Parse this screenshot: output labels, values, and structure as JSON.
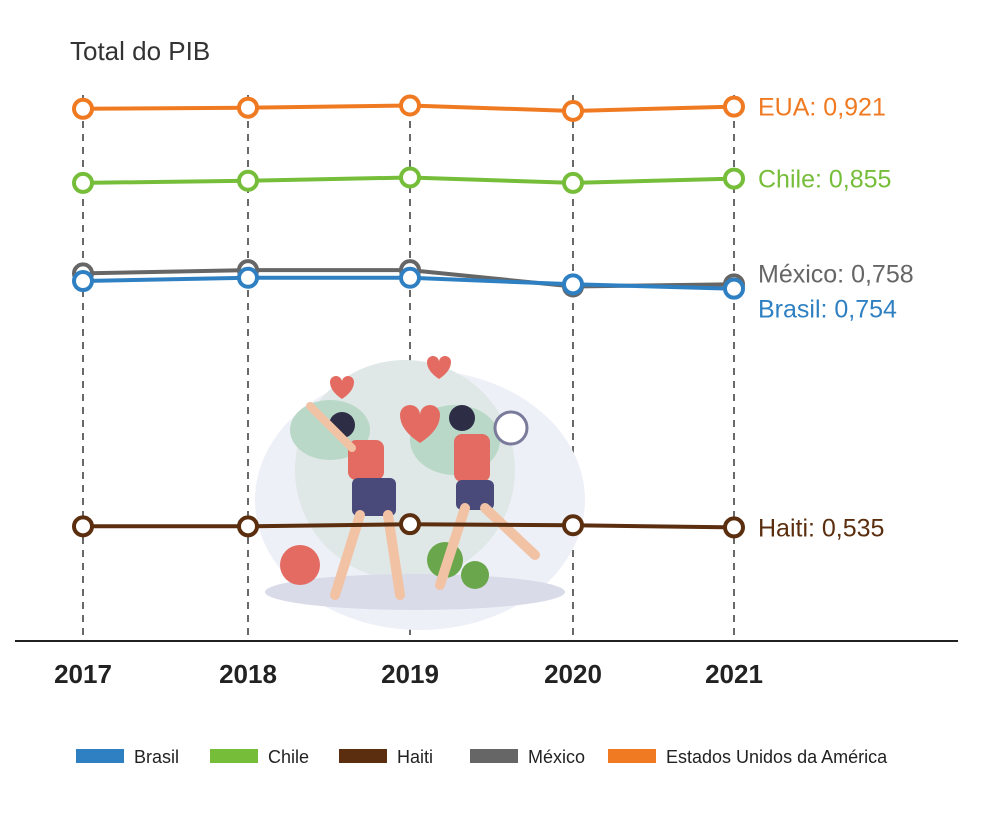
{
  "chart_data": {
    "type": "line",
    "title": "Total do PIB",
    "xlabel": "",
    "ylabel": "",
    "x": [
      "2017",
      "2018",
      "2019",
      "2020",
      "2021"
    ],
    "ylim": [
      0.44,
      0.95
    ],
    "grid": "vertical dashed lines",
    "legend": "bottom",
    "series": [
      {
        "name": "Estados Unidos da América",
        "color": "#f07a22",
        "values": [
          0.919,
          0.92,
          0.922,
          0.917,
          0.921
        ],
        "end_label": "EUA: 0,921"
      },
      {
        "name": "Chile",
        "color": "#76be39",
        "values": [
          0.851,
          0.853,
          0.856,
          0.851,
          0.855
        ],
        "end_label": "Chile: 0,855"
      },
      {
        "name": "México",
        "color": "#666666",
        "values": [
          0.768,
          0.771,
          0.771,
          0.756,
          0.758
        ],
        "end_label": "México: 0,758"
      },
      {
        "name": "Brasil",
        "color": "#2f80c3",
        "values": [
          0.761,
          0.764,
          0.764,
          0.758,
          0.754
        ],
        "end_label": "Brasil: 0,754"
      },
      {
        "name": "Haiti",
        "color": "#5a2e0e",
        "values": [
          0.536,
          0.536,
          0.538,
          0.537,
          0.535
        ],
        "end_label": "Haiti: 0,535"
      }
    ],
    "legend_order": [
      "Brasil",
      "Chile",
      "Haiti",
      "México",
      "Estados Unidos da América"
    ]
  },
  "illustration": {
    "description_icon": "fitness-people-illustration"
  }
}
